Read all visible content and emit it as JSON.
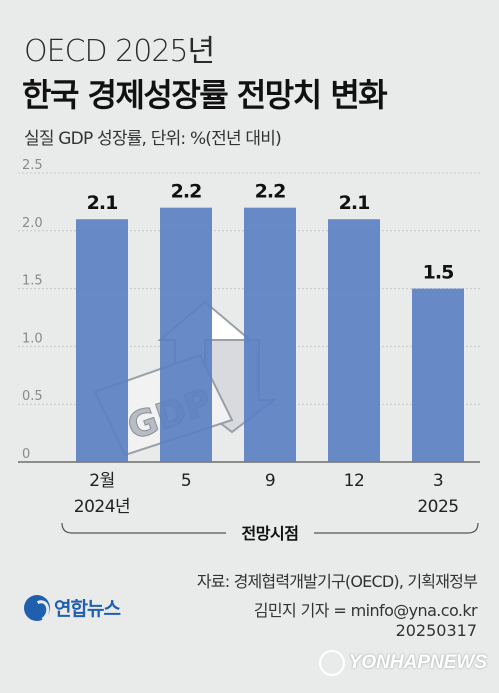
{
  "header": {
    "title_line1": "OECD 2025년",
    "title_line2": "한국 경제성장률 전망치 변화",
    "subtitle": "실질 GDP 성장률, 단위: %(전년 대비)"
  },
  "chart_data": {
    "type": "bar",
    "categories": [
      "2월\n2024년",
      "5",
      "9",
      "12",
      "3\n2025"
    ],
    "category_lines": [
      [
        "2월",
        "2024년"
      ],
      [
        "5"
      ],
      [
        "9"
      ],
      [
        "12"
      ],
      [
        "3",
        "2025"
      ]
    ],
    "values": [
      2.1,
      2.2,
      2.2,
      2.1,
      1.5
    ],
    "value_labels": [
      "2.1",
      "2.2",
      "2.2",
      "2.1",
      "1.5"
    ],
    "y_ticks": [
      "0",
      "0.5",
      "1.0",
      "1.5",
      "2.0",
      "2.5"
    ],
    "y_tick_values": [
      0,
      0.5,
      1.0,
      1.5,
      2.0,
      2.5
    ],
    "ylim": [
      0,
      2.5
    ],
    "xlabel": "전망시점",
    "bar_color": "#5b80c2",
    "grid": true,
    "illustration_text": "GDP"
  },
  "footer": {
    "source": "자료: 경제협력개발기구(OECD), 기획재정부",
    "reporter": "김민지 기자 = minfo@yna.co.kr",
    "date_code": "20250317",
    "logo_text": "연합뉴스",
    "watermark": "YONHAPNEWS"
  }
}
